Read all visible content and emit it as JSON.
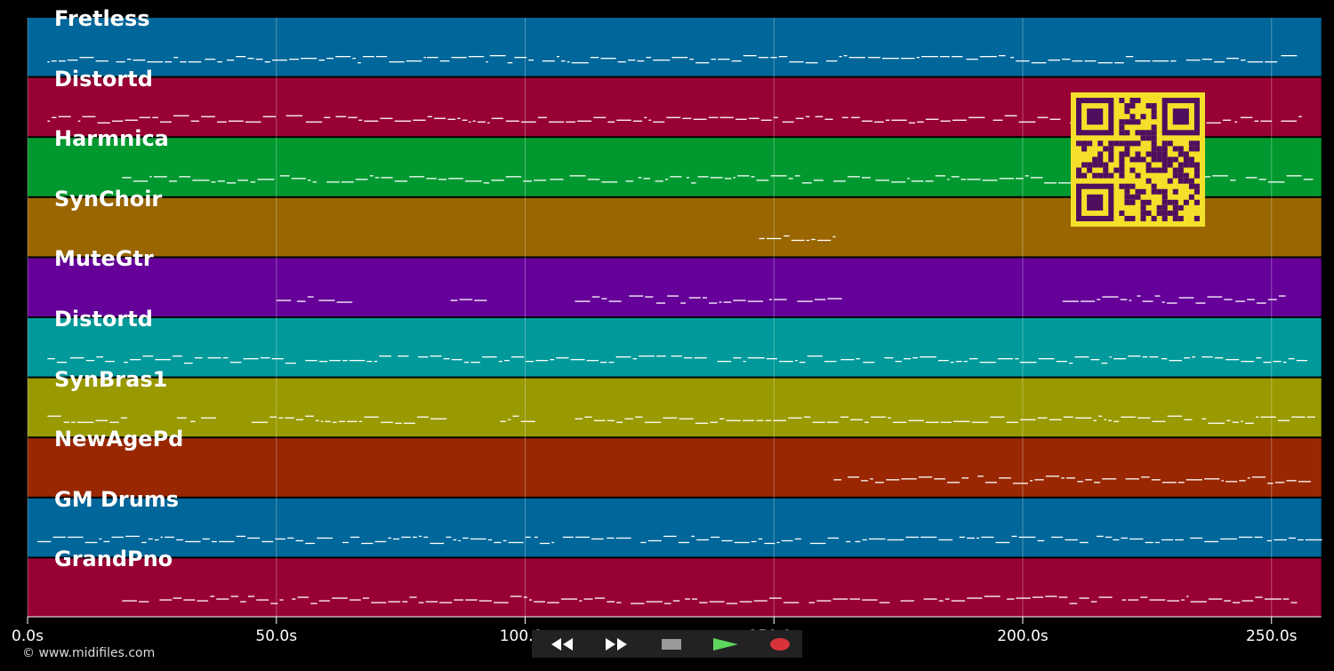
{
  "tracks": [
    {
      "name": "Fretless",
      "color": "#016699"
    },
    {
      "name": "Distortd",
      "color": "#980133"
    },
    {
      "name": "Harmnica",
      "color": "#01992f"
    },
    {
      "name": "SynChoir",
      "color": "#996601"
    },
    {
      "name": "MuteGtr",
      "color": "#650199"
    },
    {
      "name": "Distortd",
      "color": "#019999"
    },
    {
      "name": "SynBras1",
      "color": "#999901"
    },
    {
      "name": "NewAgePd",
      "color": "#992701"
    },
    {
      "name": "GM Drums",
      "color": "#016699"
    },
    {
      "name": "GrandPno",
      "color": "#980133"
    }
  ],
  "timeline": {
    "ticks": [
      "0.0s",
      "50.0s",
      "100.0s",
      "150.0s",
      "200.0s",
      "250.0s"
    ],
    "tick_seconds": [
      0,
      50,
      100,
      150,
      200,
      250
    ],
    "end_seconds": 260
  },
  "footer": {
    "copyright": "© www.midifiles.com"
  },
  "transport": {
    "buttons": [
      {
        "name": "rewind-button",
        "icon": "rewind-icon",
        "bg": "#111111"
      },
      {
        "name": "fast-forward-button",
        "icon": "fast-forward-icon",
        "bg": "#111111"
      },
      {
        "name": "stop-button",
        "icon": "stop-icon",
        "bg": "#333333"
      },
      {
        "name": "play-button",
        "icon": "play-icon",
        "bg": "#1f5f1f"
      },
      {
        "name": "record-button",
        "icon": "record-icon",
        "bg": "#4a1515"
      }
    ]
  },
  "qr_code": {
    "icon": "qr-code-icon",
    "fg": "#4f0f5f",
    "bg": "#f4e02a"
  }
}
